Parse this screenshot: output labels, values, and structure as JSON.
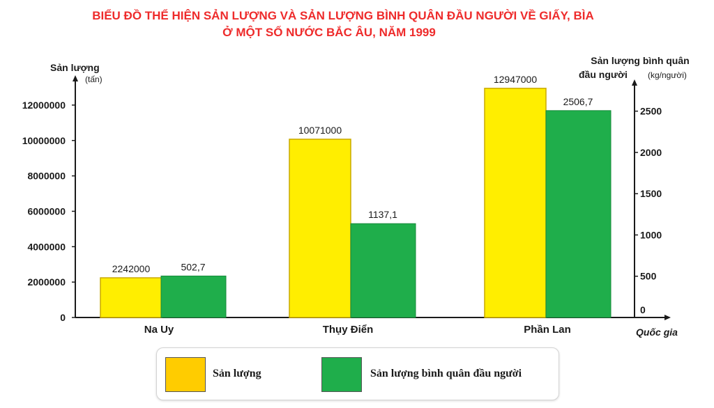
{
  "colors": {
    "title": "#ee2b2b",
    "production": "#ffee00",
    "production_edge": "#c9a800",
    "per_capita": "#1fae4b",
    "legend_production": "#ffcc00",
    "axis": "#1a1a1a"
  },
  "chart_data": {
    "type": "bar",
    "title": "BIỂU ĐỒ THỂ HIỆN SẢN LƯỢNG VÀ SẢN LƯỢNG BÌNH QUÂN ĐẦU NGƯỜI VỀ GIẤY, BÌA",
    "subtitle": "Ở MỘT SỐ NƯỚC BẮC ÂU, NĂM 1999",
    "categories": [
      "Na Uy",
      "Thụy Điển",
      "Phần Lan"
    ],
    "xlabel": "Quốc gia",
    "y_left": {
      "label": "Sản lượng",
      "unit": "(tấn)",
      "range": [
        0,
        13000000
      ],
      "ticks": [
        "0",
        "2000000",
        "4000000",
        "6000000",
        "8000000",
        "10000000",
        "12000000"
      ],
      "tick_values": [
        0,
        2000000,
        4000000,
        6000000,
        8000000,
        10000000,
        12000000
      ]
    },
    "y_right": {
      "label_line1": "Sản lượng bình quân",
      "label_line2": "đầu người",
      "unit": "(kg/người)",
      "range": [
        0,
        2750
      ],
      "ticks": [
        "0",
        "500",
        "1000",
        "1500",
        "2000",
        "2500"
      ],
      "tick_values": [
        0,
        500,
        1000,
        1500,
        2000,
        2500
      ]
    },
    "series": [
      {
        "name": "Sản lượng",
        "axis": "left",
        "values": [
          2242000,
          10071000,
          12947000
        ],
        "labels": [
          "2242000",
          "10071000",
          "12947000"
        ]
      },
      {
        "name": "Sản lượng bình quân đầu người",
        "axis": "right",
        "values": [
          502.7,
          1137.1,
          2506.7
        ],
        "labels": [
          "502,7",
          "1137,1",
          "2506,7"
        ]
      }
    ],
    "legend_position": "bottom",
    "grid": false
  }
}
